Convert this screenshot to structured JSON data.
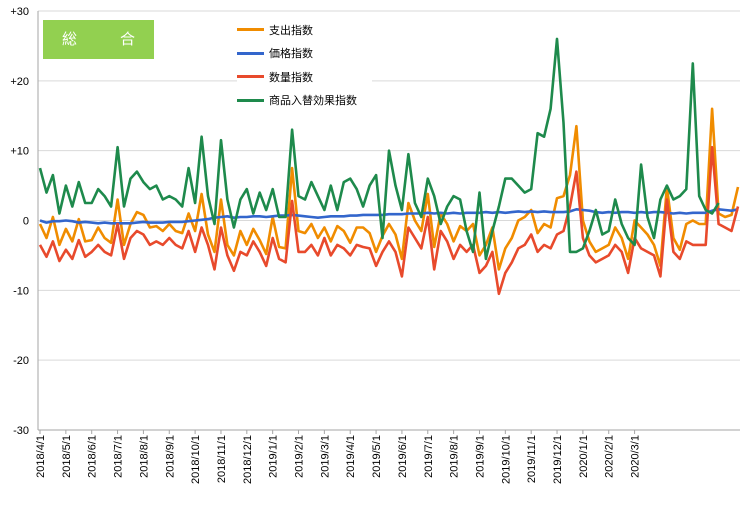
{
  "badge": {
    "label": "総　合",
    "color": "#92d050"
  },
  "chart_data": {
    "type": "line",
    "title": "",
    "xlabel": "",
    "ylabel": "",
    "ylim": [
      -30,
      30
    ],
    "yticks": [
      30,
      20,
      10,
      0,
      -10,
      -20,
      -30
    ],
    "ytick_labels": [
      "+30",
      "+20",
      "+10",
      "0",
      "-10",
      "-20",
      "-30"
    ],
    "grid": true,
    "legend_position": "top-center",
    "x_tick_labels": [
      "2018/4/1",
      "2018/5/1",
      "2018/6/1",
      "2018/7/1",
      "2018/8/1",
      "2018/9/1",
      "2018/10/1",
      "2018/11/1",
      "2018/12/1",
      "2019/1/1",
      "2019/2/1",
      "2019/3/1",
      "2019/4/1",
      "2019/5/1",
      "2019/6/1",
      "2019/7/1",
      "2019/8/1",
      "2019/9/1",
      "2019/10/1",
      "2019/11/1",
      "2019/12/1",
      "2020/1/1",
      "2020/2/1",
      "2020/3/1"
    ],
    "points_per_month": 4,
    "series": [
      {
        "name": "支出指数",
        "color": "#f08c00",
        "values": [
          -0.5,
          -2.5,
          0.5,
          -3.5,
          -1.2,
          -3.0,
          0.2,
          -3.0,
          -2.8,
          -1.0,
          -2.5,
          -3.2,
          3.0,
          -3.5,
          -0.5,
          1.2,
          0.8,
          -1.0,
          -0.8,
          -1.5,
          -0.5,
          -1.5,
          -1.8,
          1.0,
          -1.5,
          3.8,
          -2.0,
          -4.5,
          3.0,
          -3.5,
          -5.0,
          -1.5,
          -3.5,
          -1.2,
          -2.8,
          -4.8,
          0.5,
          -3.8,
          -4.0,
          7.5,
          -1.5,
          -1.8,
          -0.5,
          -2.5,
          -1.0,
          -3.0,
          -0.8,
          -1.5,
          -3.2,
          -1.0,
          -1.0,
          -1.8,
          -4.5,
          -2.2,
          -0.5,
          -2.0,
          -5.5,
          2.5,
          0.0,
          -1.5,
          3.8,
          -3.8,
          1.0,
          -0.5,
          -3.0,
          -0.8,
          -1.5,
          -0.5,
          -5.0,
          -3.5,
          -1.0,
          -7.0,
          -4.0,
          -2.5,
          0.0,
          0.5,
          1.5,
          -1.8,
          -0.5,
          -1.0,
          3.2,
          3.5,
          6.5,
          13.5,
          0.0,
          -3.0,
          -4.5,
          -4.0,
          -3.5,
          -1.0,
          -2.5,
          -5.5,
          0.0,
          -1.0,
          -2.0,
          -3.5,
          -6.5,
          4.8,
          -2.5,
          -4.2,
          -0.5,
          0.0,
          -0.5,
          -0.5,
          16.0,
          1.0,
          0.5,
          0.8,
          4.8
        ]
      },
      {
        "name": "価格指数",
        "color": "#3366cc",
        "values": [
          0.0,
          -0.3,
          -0.1,
          -0.1,
          0.0,
          -0.1,
          -0.3,
          -0.2,
          -0.3,
          -0.4,
          -0.3,
          -0.4,
          -0.4,
          -0.4,
          -0.4,
          -0.3,
          -0.2,
          -0.3,
          -0.3,
          -0.3,
          -0.2,
          -0.2,
          -0.2,
          -0.1,
          0.0,
          0.1,
          0.2,
          0.4,
          0.5,
          0.6,
          0.4,
          0.5,
          0.5,
          0.6,
          0.6,
          0.5,
          0.6,
          0.7,
          0.7,
          0.8,
          0.7,
          0.6,
          0.5,
          0.4,
          0.5,
          0.6,
          0.6,
          0.6,
          0.7,
          0.7,
          0.8,
          0.8,
          0.8,
          0.8,
          0.9,
          0.9,
          0.9,
          1.0,
          1.0,
          1.0,
          1.1,
          1.0,
          1.1,
          1.0,
          1.1,
          1.0,
          1.1,
          1.1,
          1.1,
          1.2,
          1.1,
          1.2,
          1.1,
          1.2,
          1.3,
          1.2,
          1.3,
          1.2,
          1.3,
          1.2,
          1.2,
          1.2,
          1.3,
          1.6,
          1.5,
          1.4,
          1.2,
          1.1,
          1.2,
          1.1,
          1.2,
          1.2,
          1.1,
          1.2,
          1.1,
          1.2,
          1.2,
          1.1,
          1.0,
          1.1,
          1.0,
          1.1,
          1.1,
          1.1,
          1.4,
          1.6,
          1.5,
          1.4,
          1.6
        ]
      },
      {
        "name": "数量指数",
        "color": "#e84a2c",
        "values": [
          -3.5,
          -5.2,
          -3.0,
          -5.8,
          -4.2,
          -5.5,
          -2.8,
          -5.2,
          -4.5,
          -3.5,
          -4.5,
          -5.0,
          -0.5,
          -5.5,
          -2.5,
          -1.5,
          -2.0,
          -3.5,
          -3.0,
          -3.5,
          -2.5,
          -3.5,
          -4.0,
          -1.5,
          -4.5,
          -1.0,
          -3.5,
          -7.0,
          -1.0,
          -5.0,
          -7.2,
          -4.5,
          -5.0,
          -3.0,
          -4.5,
          -6.5,
          -2.5,
          -5.5,
          -6.0,
          2.8,
          -4.5,
          -4.5,
          -3.5,
          -5.0,
          -2.5,
          -5.0,
          -3.5,
          -4.0,
          -5.0,
          -3.5,
          -3.8,
          -4.0,
          -6.5,
          -4.5,
          -3.0,
          -4.5,
          -8.0,
          -1.0,
          -2.5,
          -4.0,
          0.5,
          -7.0,
          -1.5,
          -3.0,
          -5.5,
          -3.5,
          -4.5,
          -3.5,
          -7.5,
          -6.5,
          -4.5,
          -10.5,
          -7.5,
          -6.0,
          -4.0,
          -3.5,
          -2.0,
          -4.5,
          -3.5,
          -4.0,
          -2.0,
          -1.5,
          2.0,
          7.0,
          -2.5,
          -5.0,
          -6.0,
          -5.5,
          -5.0,
          -3.5,
          -4.5,
          -7.5,
          -2.5,
          -4.0,
          -4.5,
          -5.0,
          -8.0,
          3.0,
          -4.5,
          -5.5,
          -3.0,
          -3.5,
          -3.5,
          -3.5,
          10.5,
          -0.5,
          -1.0,
          -1.5,
          2.0
        ]
      },
      {
        "name": "商品入替効果指数",
        "color": "#1e8a4c",
        "values": [
          7.5,
          4.0,
          6.5,
          1.0,
          5.0,
          2.0,
          5.5,
          2.5,
          2.5,
          4.5,
          3.5,
          2.0,
          10.5,
          2.0,
          6.0,
          7.0,
          5.5,
          4.5,
          5.0,
          3.0,
          3.5,
          3.0,
          2.0,
          7.5,
          2.5,
          12.0,
          3.5,
          -0.5,
          11.5,
          3.0,
          -1.0,
          3.0,
          4.5,
          1.0,
          4.0,
          1.5,
          4.5,
          0.5,
          0.5,
          13.0,
          3.5,
          3.0,
          5.5,
          3.5,
          1.5,
          5.0,
          1.5,
          5.5,
          6.0,
          4.5,
          2.0,
          5.0,
          6.5,
          -2.5,
          10.0,
          5.0,
          1.5,
          9.5,
          2.5,
          0.5,
          6.0,
          3.5,
          -0.5,
          2.0,
          3.5,
          3.0,
          -1.5,
          -4.5,
          4.0,
          -5.5,
          -1.5,
          2.0,
          6.0,
          6.0,
          5.0,
          4.0,
          4.5,
          12.5,
          12.0,
          16.0,
          26.0,
          14.0,
          -4.5,
          -4.5,
          -4.0,
          -1.5,
          1.5,
          -2.0,
          -1.5,
          3.0,
          -0.5,
          -2.5,
          -3.5,
          8.0,
          0.5,
          -2.5,
          3.0,
          5.0,
          3.0,
          3.5,
          4.5,
          22.5,
          3.5,
          1.5,
          1.0,
          2.5
        ]
      }
    ]
  }
}
